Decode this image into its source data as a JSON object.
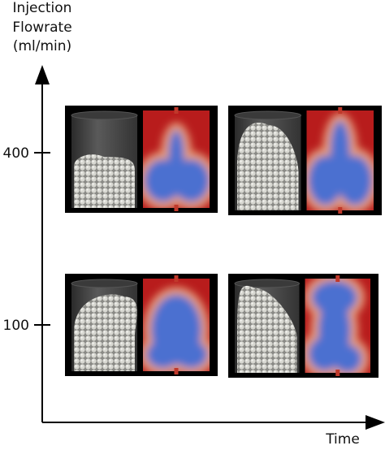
{
  "y_axis": {
    "label_lines": [
      "Injection",
      "Flowrate",
      "(ml/min)"
    ],
    "ticks": [
      "400",
      "100"
    ]
  },
  "x_axis": {
    "label": "Time"
  }
}
